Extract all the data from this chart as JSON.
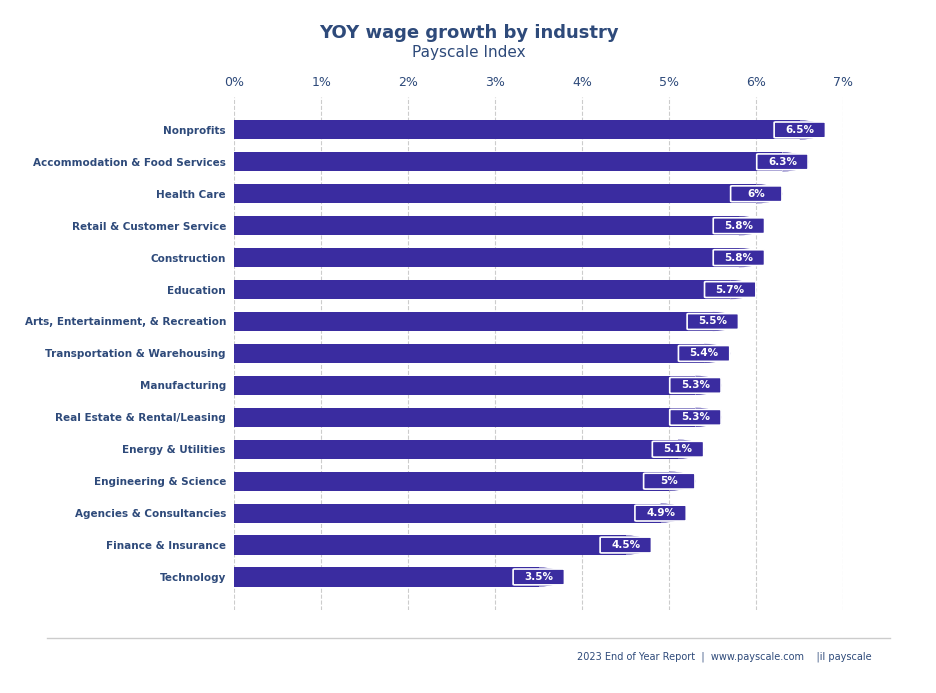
{
  "title": "YOY wage growth by industry",
  "subtitle": "Payscale Index",
  "categories": [
    "Nonprofits",
    "Accommodation & Food Services",
    "Health Care",
    "Retail & Customer Service",
    "Construction",
    "Education",
    "Arts, Entertainment, & Recreation",
    "Transportation & Warehousing",
    "Manufacturing",
    "Real Estate & Rental/Leasing",
    "Energy & Utilities",
    "Engineering & Science",
    "Agencies & Consultancies",
    "Finance & Insurance",
    "Technology"
  ],
  "values": [
    6.5,
    6.3,
    6.0,
    5.8,
    5.8,
    5.7,
    5.5,
    5.4,
    5.3,
    5.3,
    5.1,
    5.0,
    4.9,
    4.5,
    3.5
  ],
  "labels": [
    "6.5%",
    "6.3%",
    "6%",
    "5.8%",
    "5.8%",
    "5.7%",
    "5.5%",
    "5.4%",
    "5.3%",
    "5.3%",
    "5.1%",
    "5%",
    "4.9%",
    "4.5%",
    "3.5%"
  ],
  "bar_color": "#3a2ca0",
  "background_color": "#ffffff",
  "plot_bg_color": "#ffffff",
  "title_color": "#2e4a7a",
  "label_color": "#ffffff",
  "tick_color": "#2e4a7a",
  "grid_color": "#ffffff",
  "grid_dash_color": "#cccccc",
  "footer_text": "2023 End of Year Report  |  www.payscale.com",
  "xlim": [
    0,
    7
  ],
  "xticks": [
    0,
    1,
    2,
    3,
    4,
    5,
    6,
    7
  ],
  "xtick_labels": [
    "0%",
    "1%",
    "2%",
    "3%",
    "4%",
    "5%",
    "6%",
    "7%"
  ]
}
